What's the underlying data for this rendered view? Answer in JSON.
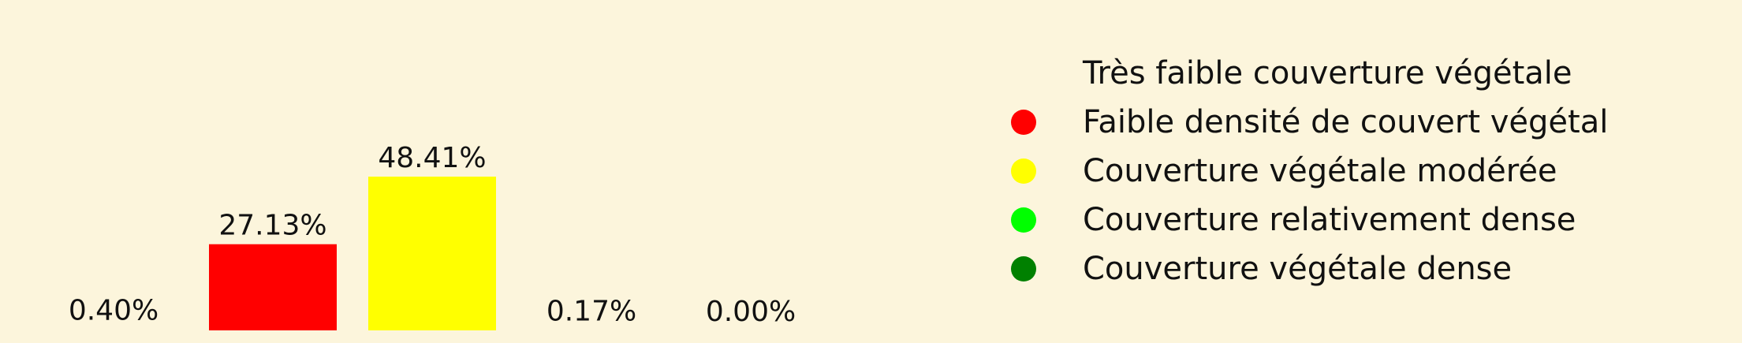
{
  "chart_data": {
    "type": "bar",
    "categories": [
      "Très faible couverture végétale",
      "Faible densité de couvert végétal",
      "Couverture végétale modérée",
      "Couverture relativement dense",
      "Couverture végétale dense"
    ],
    "values": [
      0.4,
      27.13,
      48.41,
      0.17,
      0.0
    ],
    "value_labels": [
      "0.40%",
      "27.13%",
      "48.41%",
      "0.17%",
      "0.00%"
    ],
    "colors": [
      "#000000",
      "#ff0000",
      "#ffff00",
      "#00ff00",
      "#008000"
    ],
    "legend": {
      "placement": "right",
      "entries": [
        {
          "label": "Très faible couverture végétale",
          "color": "#fcf5dc"
        },
        {
          "label": "Faible densité de couvert végétal",
          "color": "#ff0000"
        },
        {
          "label": "Couverture végétale modérée",
          "color": "#ffff00"
        },
        {
          "label": "Couverture relativement dense",
          "color": "#00ff00"
        },
        {
          "label": "Couverture végétale dense",
          "color": "#008000"
        }
      ]
    },
    "background": "#fcf5dc",
    "title": "",
    "xlabel": "",
    "ylabel": "",
    "ylim": [
      0,
      48.41
    ],
    "grid": false,
    "axes_visible": false
  }
}
